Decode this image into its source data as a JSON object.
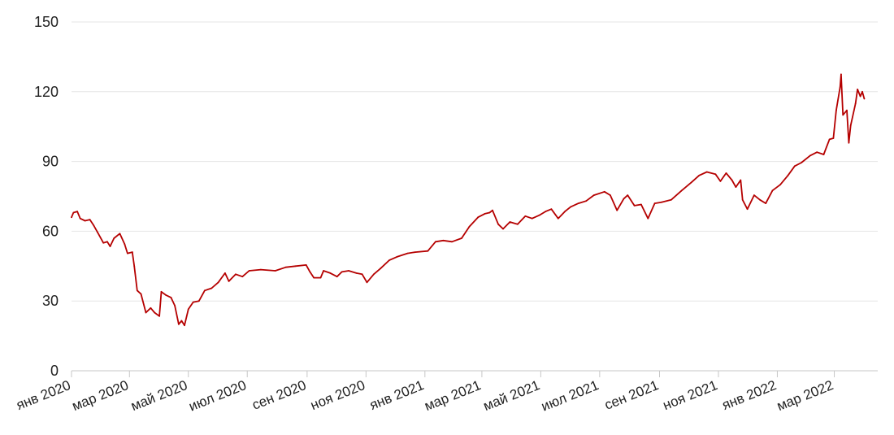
{
  "chart_data": {
    "type": "line",
    "title": "",
    "xlabel": "",
    "ylabel": "",
    "ylim": [
      0,
      150
    ],
    "yticks": [
      0,
      30,
      60,
      90,
      120,
      150
    ],
    "xlim": [
      "2020-01-01",
      "2022-04-15"
    ],
    "xticks": [
      {
        "date": "2020-01-01",
        "label": "янв 2020"
      },
      {
        "date": "2020-03-01",
        "label": "мар 2020"
      },
      {
        "date": "2020-05-01",
        "label": "май 2020"
      },
      {
        "date": "2020-07-01",
        "label": "июл 2020"
      },
      {
        "date": "2020-09-01",
        "label": "сен 2020"
      },
      {
        "date": "2020-11-01",
        "label": "ноя 2020"
      },
      {
        "date": "2021-01-01",
        "label": "янв 2021"
      },
      {
        "date": "2021-03-01",
        "label": "мар 2021"
      },
      {
        "date": "2021-05-01",
        "label": "май 2021"
      },
      {
        "date": "2021-07-01",
        "label": "июл 2021"
      },
      {
        "date": "2021-09-01",
        "label": "сен 2021"
      },
      {
        "date": "2021-11-01",
        "label": "ноя 2021"
      },
      {
        "date": "2022-01-01",
        "label": "янв 2022"
      },
      {
        "date": "2022-03-01",
        "label": "мар 2022"
      }
    ],
    "grid": true,
    "series": [
      {
        "color": "#b50000",
        "points": [
          [
            "2020-01-01",
            66
          ],
          [
            "2020-01-03",
            68
          ],
          [
            "2020-01-07",
            68.5
          ],
          [
            "2020-01-10",
            65.5
          ],
          [
            "2020-01-15",
            64.5
          ],
          [
            "2020-01-20",
            65
          ],
          [
            "2020-01-24",
            62.5
          ],
          [
            "2020-01-28",
            59.5
          ],
          [
            "2020-02-03",
            55
          ],
          [
            "2020-02-07",
            55.5
          ],
          [
            "2020-02-10",
            53.5
          ],
          [
            "2020-02-14",
            57
          ],
          [
            "2020-02-20",
            59
          ],
          [
            "2020-02-25",
            54.5
          ],
          [
            "2020-02-28",
            50.5
          ],
          [
            "2020-03-04",
            51
          ],
          [
            "2020-03-06",
            45
          ],
          [
            "2020-03-09",
            34.5
          ],
          [
            "2020-03-13",
            33
          ],
          [
            "2020-03-18",
            25
          ],
          [
            "2020-03-23",
            27
          ],
          [
            "2020-03-27",
            25
          ],
          [
            "2020-04-01",
            23.5
          ],
          [
            "2020-04-03",
            34
          ],
          [
            "2020-04-08",
            32.5
          ],
          [
            "2020-04-13",
            31.5
          ],
          [
            "2020-04-17",
            28
          ],
          [
            "2020-04-21",
            20
          ],
          [
            "2020-04-24",
            21.5
          ],
          [
            "2020-04-27",
            19.5
          ],
          [
            "2020-05-01",
            26.5
          ],
          [
            "2020-05-06",
            29.5
          ],
          [
            "2020-05-12",
            30
          ],
          [
            "2020-05-18",
            34.5
          ],
          [
            "2020-05-25",
            35.5
          ],
          [
            "2020-06-01",
            38
          ],
          [
            "2020-06-08",
            42
          ],
          [
            "2020-06-12",
            38.5
          ],
          [
            "2020-06-19",
            41.5
          ],
          [
            "2020-06-26",
            40.5
          ],
          [
            "2020-07-03",
            43
          ],
          [
            "2020-07-15",
            43.5
          ],
          [
            "2020-07-30",
            43
          ],
          [
            "2020-08-10",
            44.5
          ],
          [
            "2020-08-20",
            45
          ],
          [
            "2020-08-31",
            45.5
          ],
          [
            "2020-09-04",
            42.5
          ],
          [
            "2020-09-08",
            40
          ],
          [
            "2020-09-15",
            40
          ],
          [
            "2020-09-18",
            43
          ],
          [
            "2020-09-25",
            42
          ],
          [
            "2020-10-02",
            40.5
          ],
          [
            "2020-10-07",
            42.5
          ],
          [
            "2020-10-14",
            43
          ],
          [
            "2020-10-22",
            42
          ],
          [
            "2020-10-28",
            41.5
          ],
          [
            "2020-11-02",
            38
          ],
          [
            "2020-11-09",
            41.5
          ],
          [
            "2020-11-16",
            44
          ],
          [
            "2020-11-25",
            47.5
          ],
          [
            "2020-12-03",
            49
          ],
          [
            "2020-12-14",
            50.5
          ],
          [
            "2020-12-22",
            51
          ],
          [
            "2021-01-04",
            51.5
          ],
          [
            "2021-01-12",
            55.5
          ],
          [
            "2021-01-20",
            56
          ],
          [
            "2021-01-29",
            55.5
          ],
          [
            "2021-02-08",
            57
          ],
          [
            "2021-02-16",
            62
          ],
          [
            "2021-02-25",
            66
          ],
          [
            "2021-03-04",
            67.5
          ],
          [
            "2021-03-09",
            68
          ],
          [
            "2021-03-12",
            69
          ],
          [
            "2021-03-18",
            63
          ],
          [
            "2021-03-23",
            61
          ],
          [
            "2021-03-30",
            64
          ],
          [
            "2021-04-07",
            63
          ],
          [
            "2021-04-15",
            66.5
          ],
          [
            "2021-04-22",
            65.5
          ],
          [
            "2021-04-30",
            67
          ],
          [
            "2021-05-06",
            68.5
          ],
          [
            "2021-05-12",
            69.5
          ],
          [
            "2021-05-19",
            65.5
          ],
          [
            "2021-05-26",
            68.5
          ],
          [
            "2021-06-01",
            70.5
          ],
          [
            "2021-06-09",
            72
          ],
          [
            "2021-06-17",
            73
          ],
          [
            "2021-06-25",
            75.5
          ],
          [
            "2021-07-06",
            77
          ],
          [
            "2021-07-12",
            75.5
          ],
          [
            "2021-07-19",
            69
          ],
          [
            "2021-07-26",
            74
          ],
          [
            "2021-07-30",
            75.5
          ],
          [
            "2021-08-06",
            71
          ],
          [
            "2021-08-13",
            71.5
          ],
          [
            "2021-08-20",
            65.5
          ],
          [
            "2021-08-27",
            72
          ],
          [
            "2021-09-03",
            72.5
          ],
          [
            "2021-09-13",
            73.5
          ],
          [
            "2021-09-24",
            77.5
          ],
          [
            "2021-10-04",
            81
          ],
          [
            "2021-10-12",
            84
          ],
          [
            "2021-10-20",
            85.5
          ],
          [
            "2021-10-29",
            84.5
          ],
          [
            "2021-11-03",
            81.5
          ],
          [
            "2021-11-09",
            85
          ],
          [
            "2021-11-15",
            82
          ],
          [
            "2021-11-19",
            79
          ],
          [
            "2021-11-24",
            82
          ],
          [
            "2021-11-26",
            73.5
          ],
          [
            "2021-12-01",
            69.5
          ],
          [
            "2021-12-08",
            75.5
          ],
          [
            "2021-12-14",
            73.5
          ],
          [
            "2021-12-20",
            72
          ],
          [
            "2021-12-27",
            77.5
          ],
          [
            "2022-01-04",
            80
          ],
          [
            "2022-01-12",
            84
          ],
          [
            "2022-01-19",
            88
          ],
          [
            "2022-01-26",
            89.5
          ],
          [
            "2022-02-04",
            92.5
          ],
          [
            "2022-02-11",
            94
          ],
          [
            "2022-02-18",
            93
          ],
          [
            "2022-02-24",
            99.5
          ],
          [
            "2022-02-28",
            100
          ],
          [
            "2022-03-03",
            112
          ],
          [
            "2022-03-07",
            122
          ],
          [
            "2022-03-08",
            127.5
          ],
          [
            "2022-03-10",
            110
          ],
          [
            "2022-03-14",
            112
          ],
          [
            "2022-03-16",
            98
          ],
          [
            "2022-03-18",
            105.5
          ],
          [
            "2022-03-23",
            115
          ],
          [
            "2022-03-25",
            121
          ],
          [
            "2022-03-28",
            118
          ],
          [
            "2022-03-30",
            120
          ],
          [
            "2022-04-01",
            117
          ]
        ]
      }
    ]
  }
}
